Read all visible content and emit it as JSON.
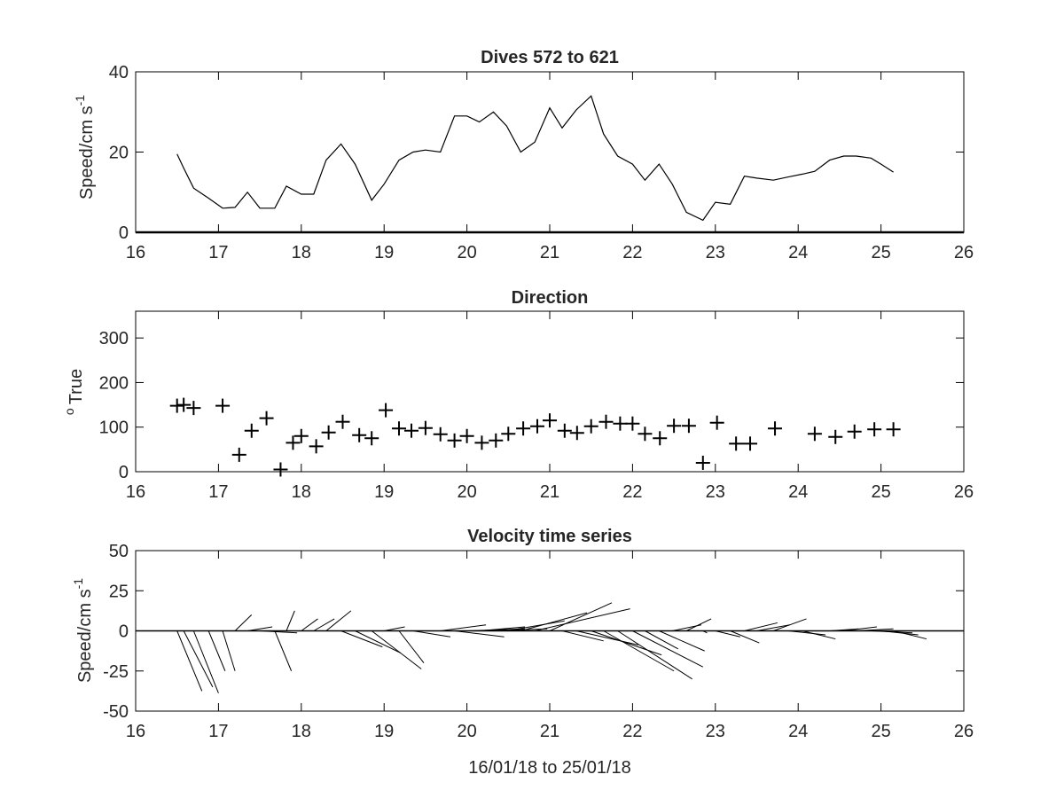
{
  "figure": {
    "background": "#ffffff",
    "ink": "#000000",
    "xlabel": "16/01/18 to 25/01/18"
  },
  "chart_data": [
    {
      "type": "line",
      "title": "Dives 572 to 621",
      "ylabel": "Speed/cm s",
      "ylabel_sup": "-1",
      "xlim": [
        16,
        26
      ],
      "ylim": [
        0,
        40
      ],
      "xticks": [
        16,
        17,
        18,
        19,
        20,
        21,
        22,
        23,
        24,
        25,
        26
      ],
      "yticks": [
        0,
        20,
        40
      ],
      "series": [
        {
          "x": [
            16.5,
            16.58,
            16.7,
            16.88,
            17.05,
            17.2,
            17.35,
            17.5,
            17.68,
            17.82,
            18.0,
            18.15,
            18.3,
            18.48,
            18.65,
            18.85,
            19.0,
            19.18,
            19.35,
            19.5,
            19.68,
            19.85,
            20.0,
            20.15,
            20.32,
            20.48,
            20.65,
            20.82,
            21.0,
            21.15,
            21.32,
            21.5,
            21.65,
            21.82,
            22.0,
            22.15,
            22.32,
            22.48,
            22.65,
            22.85,
            23.0,
            23.18,
            23.35,
            23.5,
            23.7,
            23.88,
            24.05,
            24.2,
            24.38,
            24.55,
            24.7,
            24.88,
            25.0,
            25.15
          ],
          "y": [
            19.5,
            16,
            11,
            8.5,
            6,
            6.2,
            10,
            6,
            6,
            11.5,
            9.5,
            9.5,
            18,
            22,
            17,
            8,
            12,
            18,
            20,
            20.5,
            20,
            29,
            29,
            27.5,
            30,
            26.5,
            20,
            22.5,
            31,
            26,
            30.5,
            34,
            24.5,
            19,
            17,
            13,
            17,
            12,
            5,
            3,
            7.5,
            7,
            14,
            13.5,
            13,
            13.8,
            14.5,
            15.2,
            18,
            19,
            19,
            18.5,
            17,
            15
          ]
        }
      ]
    },
    {
      "type": "scatter",
      "title": "Direction",
      "ylabel": "True",
      "ylabel_sup": "o",
      "xlim": [
        16,
        26
      ],
      "ylim": [
        0,
        360
      ],
      "xticks": [
        16,
        17,
        18,
        19,
        20,
        21,
        22,
        23,
        24,
        25,
        26
      ],
      "yticks": [
        0,
        100,
        200,
        300
      ],
      "marker": "+",
      "series": [
        {
          "x": [
            16.5,
            16.58,
            16.7,
            17.05,
            17.25,
            17.4,
            17.58,
            17.75,
            17.9,
            18.0,
            18.18,
            18.33,
            18.5,
            18.7,
            18.85,
            19.02,
            19.18,
            19.33,
            19.5,
            19.68,
            19.85,
            20.0,
            20.18,
            20.35,
            20.5,
            20.68,
            20.85,
            21.0,
            21.18,
            21.33,
            21.5,
            21.68,
            21.85,
            22.0,
            22.15,
            22.33,
            22.5,
            22.68,
            22.85,
            23.02,
            23.25,
            23.42,
            23.72,
            24.2,
            24.45,
            24.68,
            24.92,
            25.15
          ],
          "y": [
            148,
            150,
            143,
            148,
            38,
            92,
            120,
            5,
            65,
            80,
            57,
            88,
            112,
            82,
            75,
            138,
            97,
            92,
            98,
            84,
            70,
            80,
            65,
            70,
            85,
            97,
            102,
            115,
            92,
            87,
            102,
            112,
            108,
            108,
            85,
            75,
            103,
            103,
            20,
            110,
            63,
            63,
            97,
            85,
            78,
            90,
            95,
            95
          ]
        }
      ]
    },
    {
      "type": "vector",
      "title": "Velocity time series",
      "ylabel": "Speed/cm s",
      "ylabel_sup": "-1",
      "xlim": [
        16,
        26
      ],
      "ylim": [
        -50,
        50
      ],
      "xticks": [
        16,
        17,
        18,
        19,
        20,
        21,
        22,
        23,
        24,
        25,
        26
      ],
      "yticks": [
        -50,
        -25,
        0,
        25,
        50
      ],
      "baseline": 0,
      "vectors": [
        {
          "t": 16.5,
          "u": 0.3,
          "v": -1.5
        },
        {
          "t": 16.58,
          "u": 0.35,
          "v": -1.4
        },
        {
          "t": 16.7,
          "u": 0.3,
          "v": -1.55
        },
        {
          "t": 16.88,
          "u": 0.2,
          "v": -1.0
        },
        {
          "t": 17.05,
          "u": 0.15,
          "v": -1.0
        },
        {
          "t": 17.2,
          "u": 0.2,
          "v": 0.4
        },
        {
          "t": 17.35,
          "u": 0.3,
          "v": 0.1
        },
        {
          "t": 17.5,
          "u": 0.45,
          "v": -0.05
        },
        {
          "t": 17.68,
          "u": 0.2,
          "v": -1.0
        },
        {
          "t": 17.82,
          "u": 0.1,
          "v": 0.5
        },
        {
          "t": 18.0,
          "u": 0.2,
          "v": 0.3
        },
        {
          "t": 18.15,
          "u": 0.25,
          "v": 0.3
        },
        {
          "t": 18.3,
          "u": 0.3,
          "v": 0.5
        },
        {
          "t": 18.48,
          "u": 0.5,
          "v": -0.4
        },
        {
          "t": 18.65,
          "u": 0.55,
          "v": -0.55
        },
        {
          "t": 18.85,
          "u": 0.6,
          "v": -0.95
        },
        {
          "t": 19.0,
          "u": 0.25,
          "v": 0.1
        },
        {
          "t": 19.18,
          "u": 0.3,
          "v": -0.8
        },
        {
          "t": 19.35,
          "u": 0.45,
          "v": -0.15
        },
        {
          "t": 19.5,
          "u": 0.4,
          "v": 0.0
        },
        {
          "t": 19.68,
          "u": 0.55,
          "v": 0.15
        },
        {
          "t": 19.85,
          "u": 0.6,
          "v": -0.15
        },
        {
          "t": 20.0,
          "u": 0.7,
          "v": 0.05
        },
        {
          "t": 20.15,
          "u": 0.55,
          "v": 0.1
        },
        {
          "t": 20.32,
          "u": 0.65,
          "v": 0.05
        },
        {
          "t": 20.48,
          "u": 0.7,
          "v": 0.25
        },
        {
          "t": 20.65,
          "u": 0.8,
          "v": 0.45
        },
        {
          "t": 20.82,
          "u": 1.15,
          "v": 0.55
        },
        {
          "t": 21.0,
          "u": 0.75,
          "v": 0.7
        },
        {
          "t": 21.15,
          "u": 0.5,
          "v": -0.25
        },
        {
          "t": 21.32,
          "u": 0.75,
          "v": -0.35
        },
        {
          "t": 21.5,
          "u": 0.85,
          "v": -0.6
        },
        {
          "t": 21.65,
          "u": 0.85,
          "v": -1.0
        },
        {
          "t": 21.82,
          "u": 0.9,
          "v": -1.2
        },
        {
          "t": 22.0,
          "u": 0.85,
          "v": -0.9
        },
        {
          "t": 22.15,
          "u": 0.4,
          "v": -0.45
        },
        {
          "t": 22.32,
          "u": 0.55,
          "v": -0.5
        },
        {
          "t": 22.48,
          "u": 0.35,
          "v": 0.15
        },
        {
          "t": 22.65,
          "u": 0.3,
          "v": 0.3
        },
        {
          "t": 22.85,
          "u": 0.05,
          "v": -0.05
        },
        {
          "t": 23.0,
          "u": 0.3,
          "v": -0.15
        },
        {
          "t": 23.18,
          "u": 0.35,
          "v": -0.3
        },
        {
          "t": 23.35,
          "u": 0.4,
          "v": 0.2
        },
        {
          "t": 23.5,
          "u": 0.4,
          "v": 0.15
        },
        {
          "t": 23.7,
          "u": 0.4,
          "v": 0.3
        },
        {
          "t": 23.88,
          "u": 0.45,
          "v": -0.1
        },
        {
          "t": 24.05,
          "u": 0.4,
          "v": -0.2
        },
        {
          "t": 24.2,
          "u": 0.3,
          "v": 0.0
        },
        {
          "t": 24.38,
          "u": 0.35,
          "v": 0.05
        },
        {
          "t": 24.55,
          "u": 0.4,
          "v": 0.1
        },
        {
          "t": 24.7,
          "u": 0.45,
          "v": 0.05
        },
        {
          "t": 24.88,
          "u": 0.5,
          "v": -0.05
        },
        {
          "t": 25.0,
          "u": 0.45,
          "v": -0.1
        },
        {
          "t": 25.15,
          "u": 0.4,
          "v": -0.2
        }
      ]
    }
  ]
}
